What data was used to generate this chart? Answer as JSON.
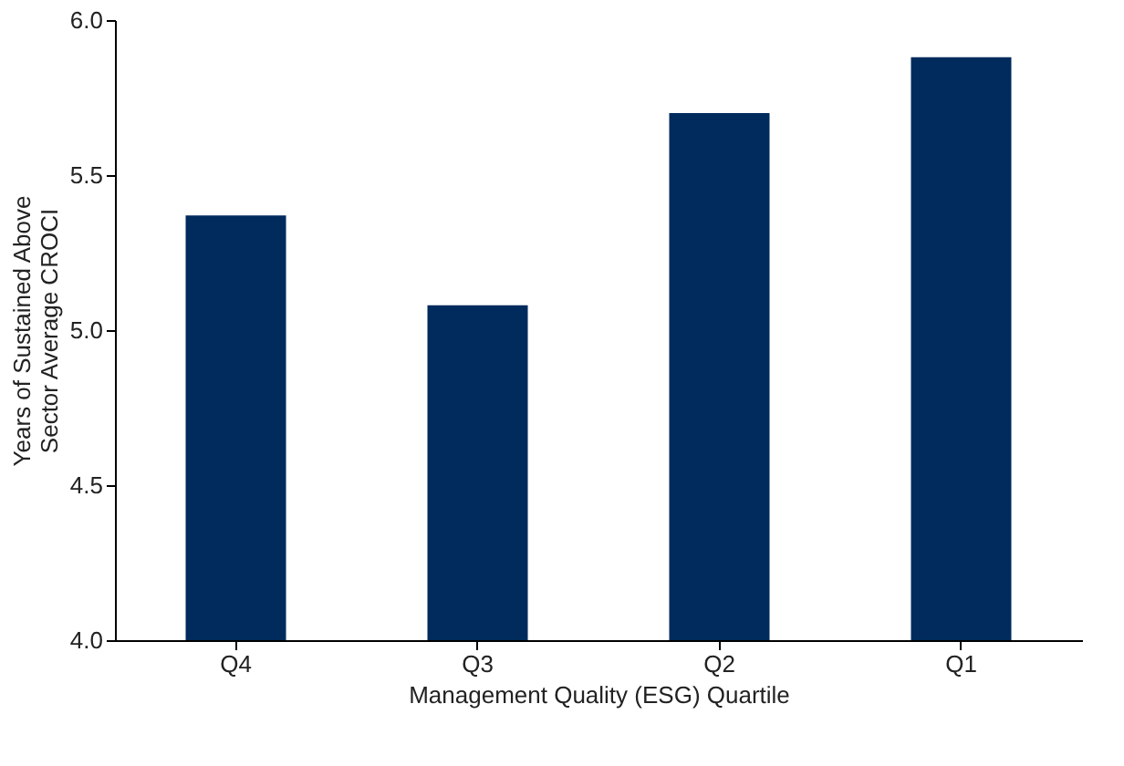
{
  "chart_data": {
    "type": "bar",
    "xlabel": "Management Quality (ESG) Quartile",
    "ylabel": "Years of Sustained Above\nSector Average CROCI",
    "categories": [
      "Q4",
      "Q3",
      "Q2",
      "Q1"
    ],
    "values": [
      5.37,
      5.08,
      5.7,
      5.88
    ],
    "color": "#002b5c",
    "ylim": [
      4.0,
      6.0
    ],
    "yticks": [
      {
        "value": 4.0,
        "label": "4.0"
      },
      {
        "value": 4.5,
        "label": "4.5"
      },
      {
        "value": 5.0,
        "label": "5.0"
      },
      {
        "value": 5.5,
        "label": "5.5"
      },
      {
        "value": 6.0,
        "label": "6.0"
      }
    ],
    "grid": false
  }
}
